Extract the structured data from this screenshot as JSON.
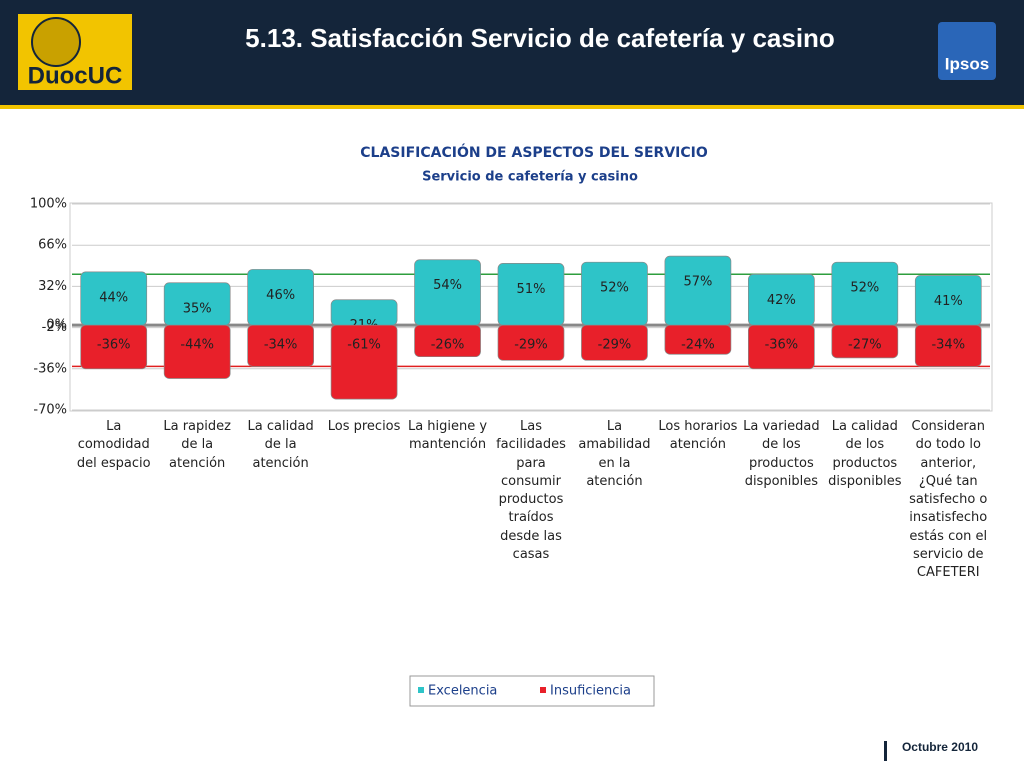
{
  "header": {
    "title": "5.13. Satisfacción Servicio de cafetería y casino",
    "logo_left": "DuocUC",
    "logo_right": "Ipsos"
  },
  "chart_data": {
    "type": "bar",
    "title": "CLASIFICACIÓN DE ASPECTOS DEL SERVICIO",
    "subtitle": "Servicio de cafetería y casino",
    "categories": [
      "La comodidad del espacio",
      "La rapidez de la atención",
      "La calidad de la atención",
      "Los precios",
      "La higiene y mantención",
      "Las facilidades para consumir productos traídos desde las casas",
      "La amabilidad en la atención",
      "Los horarios atención",
      "La variedad de los productos disponibles",
      "La calidad de los productos disponibles",
      "Considerando todo lo anterior, ¿Qué tan satisfecho o insatisfecho estás con el servicio de CAFETERI"
    ],
    "series": [
      {
        "name": "Excelencia",
        "color": "#2ec4c8",
        "values": [
          44,
          35,
          46,
          21,
          54,
          51,
          52,
          57,
          42,
          52,
          41
        ],
        "value_labels": [
          "44%",
          "35%",
          "46%",
          "21%",
          "54%",
          "51%",
          "52%",
          "57%",
          "42%",
          "52%",
          "41%"
        ]
      },
      {
        "name": "Insuficiencia",
        "color": "#e8202a",
        "values": [
          -36,
          -44,
          -34,
          -61,
          -26,
          -29,
          -29,
          -24,
          -36,
          -27,
          -34
        ],
        "value_labels": [
          "-36%",
          "-44%",
          "-34%",
          "-61%",
          "-26%",
          "-29%",
          "-29%",
          "-24%",
          "-36%",
          "-27%",
          "-34%"
        ]
      }
    ],
    "reference_lines": [
      {
        "value": 42,
        "color": "#2e9e3e"
      },
      {
        "value": -34,
        "color": "#e02020"
      }
    ],
    "ylim": [
      -70,
      100
    ],
    "yticks": [
      {
        "value": 100,
        "label": "100%"
      },
      {
        "value": 66,
        "label": "66%"
      },
      {
        "value": 32,
        "label": "32%"
      },
      {
        "value": 0,
        "label": "0%"
      },
      {
        "value": -2,
        "label": "-2%"
      },
      {
        "value": -36,
        "label": "-36%"
      },
      {
        "value": -70,
        "label": "-70%"
      }
    ],
    "grid": true,
    "legend": "bottom"
  },
  "footer": {
    "date": "Octubre 2010"
  }
}
